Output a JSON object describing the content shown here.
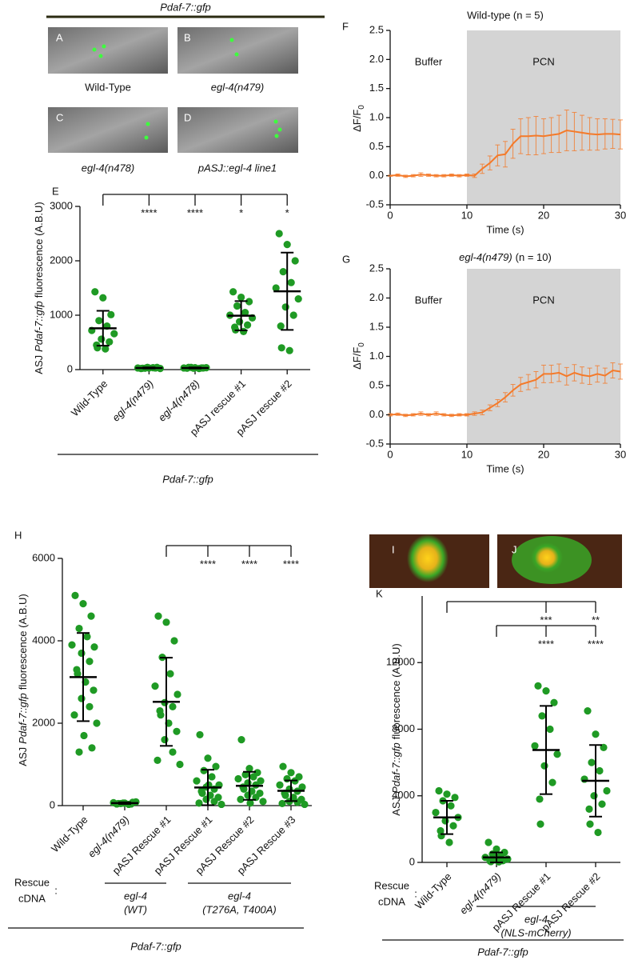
{
  "figure": {
    "header": "Pdaf-7::gfp",
    "image_panels": [
      {
        "panel": "A",
        "caption": "Wild-Type"
      },
      {
        "panel": "B",
        "caption": "egl-4(n479)"
      },
      {
        "panel": "C",
        "caption": "egl-4(n478)"
      },
      {
        "panel": "D",
        "caption": "pASJ::egl-4 line1"
      },
      {
        "panel": "I"
      },
      {
        "panel": "J"
      }
    ]
  },
  "chart_data": [
    {
      "type": "dotplot",
      "panel": "E",
      "ylabel_parts": [
        "ASJ",
        "Pdaf-7::gfp",
        "fluorescence (A.B.U)"
      ],
      "categories": [
        "Wild-Type",
        "egl-4(n479)",
        "egl-4(n478)",
        "pASJ rescue #1",
        "pASJ rescue #2"
      ],
      "points": [
        [
          1430,
          1320,
          1010,
          900,
          800,
          720,
          660,
          560,
          510,
          450,
          400,
          380
        ],
        [
          20,
          30,
          40,
          25,
          35,
          30,
          20,
          40,
          30,
          25
        ],
        [
          25,
          35,
          30,
          40,
          20,
          30,
          35,
          25,
          30,
          40
        ],
        [
          1430,
          1330,
          1250,
          1170,
          1050,
          1000,
          950,
          880,
          820,
          780,
          730,
          700
        ],
        [
          2500,
          2300,
          2000,
          1800,
          1600,
          1500,
          1300,
          1150,
          1000,
          800,
          400,
          350
        ]
      ],
      "values": [
        760,
        30,
        30,
        990,
        1440
      ],
      "errors": [
        320,
        10,
        10,
        270,
        710
      ],
      "color": "#1f9a24",
      "ylim": [
        0,
        3000
      ],
      "yticks": [
        0,
        1000,
        2000,
        3000
      ],
      "significance": [
        {
          "from": 0,
          "to": [
            1,
            2,
            3,
            4
          ],
          "labels": [
            "****",
            "****",
            "*",
            "*"
          ]
        }
      ],
      "footer": "Pdaf-7::gfp"
    },
    {
      "type": "line",
      "panel": "F",
      "title": "Wild-type (n = 5)",
      "ylabel_parts": [
        "ΔF/F",
        "0"
      ],
      "xlabel": "Time (s)",
      "x": [
        0,
        1,
        2,
        3,
        4,
        5,
        6,
        7,
        8,
        9,
        10,
        11,
        12,
        13,
        14,
        15,
        16,
        17,
        18,
        19,
        20,
        21,
        22,
        23,
        24,
        25,
        26,
        27,
        28,
        29,
        30
      ],
      "values": [
        0,
        0.01,
        -0.01,
        0,
        0.02,
        0.01,
        0,
        0,
        0.01,
        0,
        0.01,
        0,
        0.12,
        0.22,
        0.35,
        0.37,
        0.55,
        0.68,
        0.68,
        0.69,
        0.68,
        0.7,
        0.72,
        0.78,
        0.76,
        0.74,
        0.72,
        0.71,
        0.72,
        0.72,
        0.71
      ],
      "errors": [
        0.01,
        0.02,
        0.02,
        0.02,
        0.03,
        0.02,
        0.02,
        0.02,
        0.02,
        0.02,
        0.02,
        0.03,
        0.08,
        0.12,
        0.18,
        0.22,
        0.25,
        0.3,
        0.32,
        0.33,
        0.3,
        0.3,
        0.32,
        0.35,
        0.33,
        0.3,
        0.28,
        0.27,
        0.26,
        0.25,
        0.25
      ],
      "color": "#f47a2a",
      "xlim": [
        0,
        30
      ],
      "xticks": [
        0,
        10,
        20,
        30
      ],
      "ylim": [
        -0.5,
        2.5
      ],
      "yticks": [
        -0.5,
        {
          "value": 0,
          "label": "0.0"
        },
        0.5,
        {
          "value": 1,
          "label": "1.0"
        },
        1.5,
        {
          "value": 2,
          "label": "2.0"
        },
        2.5
      ],
      "shade": [
        10,
        30
      ],
      "shade_color": "#d4d4d4",
      "annotations": [
        "Buffer",
        "PCN"
      ]
    },
    {
      "type": "line",
      "panel": "G",
      "title_parts": [
        "egl-4(n479)",
        "(n = 10)"
      ],
      "ylabel_parts": [
        "ΔF/F",
        "0"
      ],
      "xlabel": "Time (s)",
      "x": [
        0,
        1,
        2,
        3,
        4,
        5,
        6,
        7,
        8,
        9,
        10,
        11,
        12,
        13,
        14,
        15,
        16,
        17,
        18,
        19,
        20,
        21,
        22,
        23,
        24,
        25,
        26,
        27,
        28,
        29,
        30
      ],
      "values": [
        0,
        0.01,
        -0.01,
        0,
        0.02,
        0,
        0.02,
        0,
        -0.01,
        0,
        0,
        0.02,
        0.04,
        0.12,
        0.2,
        0.3,
        0.42,
        0.52,
        0.56,
        0.6,
        0.7,
        0.7,
        0.72,
        0.66,
        0.72,
        0.68,
        0.66,
        0.7,
        0.67,
        0.76,
        0.74
      ],
      "errors": [
        0.02,
        0.02,
        0.02,
        0.02,
        0.03,
        0.02,
        0.03,
        0.02,
        0.02,
        0.02,
        0.02,
        0.03,
        0.04,
        0.05,
        0.06,
        0.08,
        0.1,
        0.12,
        0.13,
        0.14,
        0.15,
        0.15,
        0.15,
        0.15,
        0.14,
        0.14,
        0.14,
        0.14,
        0.13,
        0.13,
        0.13
      ],
      "color": "#f47a2a",
      "xlim": [
        0,
        30
      ],
      "xticks": [
        0,
        10,
        20,
        30
      ],
      "ylim": [
        -0.5,
        2.5
      ],
      "yticks": [
        -0.5,
        {
          "value": 0,
          "label": "0.0"
        },
        0.5,
        {
          "value": 1,
          "label": "1.0"
        },
        1.5,
        {
          "value": 2,
          "label": "2.0"
        },
        2.5
      ],
      "shade": [
        10,
        30
      ],
      "shade_color": "#d4d4d4",
      "annotations": [
        "Buffer",
        "PCN"
      ]
    },
    {
      "type": "dotplot",
      "panel": "H",
      "ylabel_parts": [
        "ASJ",
        "Pdaf-7::gfp",
        "fluorescence (A.B.U)"
      ],
      "categories": [
        "Wild-Type",
        "egl-4(n479)",
        "pASJ Rescue #1",
        "pASJ Rescue #1",
        "pASJ Rescue #2",
        "pASJ Rescue #3"
      ],
      "points": [
        [
          5100,
          4900,
          4600,
          4300,
          4100,
          3900,
          3850,
          3700,
          3500,
          3300,
          3200,
          3000,
          2800,
          2600,
          2400,
          2200,
          2000,
          1700,
          1400,
          1300
        ],
        [
          40,
          60,
          80,
          50,
          30,
          70,
          90,
          60,
          40,
          50
        ],
        [
          4600,
          4450,
          4000,
          3600,
          3200,
          2900,
          2700,
          2500,
          2400,
          2300,
          2200,
          2000,
          1800,
          1600,
          1300,
          1100,
          1000
        ],
        [
          1720,
          1150,
          950,
          850,
          700,
          600,
          500,
          450,
          400,
          350,
          300,
          250,
          200,
          150,
          100,
          60,
          30,
          500
        ],
        [
          1600,
          900,
          800,
          750,
          700,
          650,
          600,
          550,
          500,
          450,
          400,
          350,
          300,
          250,
          200,
          150,
          100,
          60
        ],
        [
          950,
          800,
          700,
          650,
          600,
          500,
          450,
          400,
          350,
          300,
          250,
          200,
          150,
          100,
          80,
          50,
          30
        ]
      ],
      "values": [
        3120,
        60,
        2520,
        440,
        480,
        360
      ],
      "errors": [
        1070,
        20,
        1070,
        430,
        340,
        250
      ],
      "color": "#1f9a24",
      "ylim": [
        0,
        6000
      ],
      "yticks": [
        0,
        2000,
        4000,
        6000
      ],
      "significance": [
        {
          "from": 2,
          "to": [
            3,
            4,
            5
          ],
          "labels": [
            "****",
            "****",
            "****"
          ]
        }
      ],
      "rescue_label": [
        "Rescue",
        ":",
        "cDNA"
      ],
      "groups": [
        {
          "label": [
            "egl-4",
            "(WT)"
          ],
          "from": 1,
          "to": 2
        },
        {
          "label": [
            "egl-4",
            "(T276A, T400A)"
          ],
          "from": 3,
          "to": 5
        }
      ],
      "footer": "Pdaf-7::gfp"
    },
    {
      "type": "dotplot",
      "panel": "K",
      "ylabel_parts": [
        "ASJ",
        "Pdaf-7::gfp",
        "fluorescence (A.B.U)"
      ],
      "categories": [
        "Wild-Type",
        "egl-4(n479)",
        "pASJ Rescue #1",
        "pASJ Rescue #2"
      ],
      "points": [
        [
          4300,
          4100,
          3900,
          3700,
          3400,
          3000,
          2700,
          2500,
          2200,
          1900,
          1600,
          1200
        ],
        [
          1200,
          800,
          600,
          500,
          400,
          300,
          200,
          150,
          100,
          80,
          50,
          30
        ],
        [
          10600,
          10300,
          9600,
          8800,
          8000,
          7000,
          6500,
          5800,
          4800,
          3800,
          2300
        ],
        [
          9100,
          7700,
          6900,
          6000,
          5500,
          5000,
          4300,
          4000,
          3500,
          3200,
          2300,
          1800
        ]
      ],
      "values": [
        2700,
        300,
        6750,
        4900
      ],
      "errors": [
        1000,
        300,
        2650,
        2150
      ],
      "color": "#1f9a24",
      "ylim": [
        0,
        16000
      ],
      "yticks": [
        0,
        4000,
        8000,
        12000
      ],
      "significance": [
        {
          "from": 0,
          "to": [
            2,
            3
          ],
          "labels": [
            "***",
            "**"
          ]
        },
        {
          "from": 1,
          "to": [
            2,
            3
          ],
          "labels": [
            "****",
            "****"
          ]
        }
      ],
      "rescue_label": [
        "Rescue",
        ":",
        "cDNA"
      ],
      "groups": [
        {
          "label": [
            "egl-4",
            "(NLS-mCherry)"
          ],
          "from": 1,
          "to": 3
        }
      ],
      "footer": "Pdaf-7::gfp"
    }
  ]
}
